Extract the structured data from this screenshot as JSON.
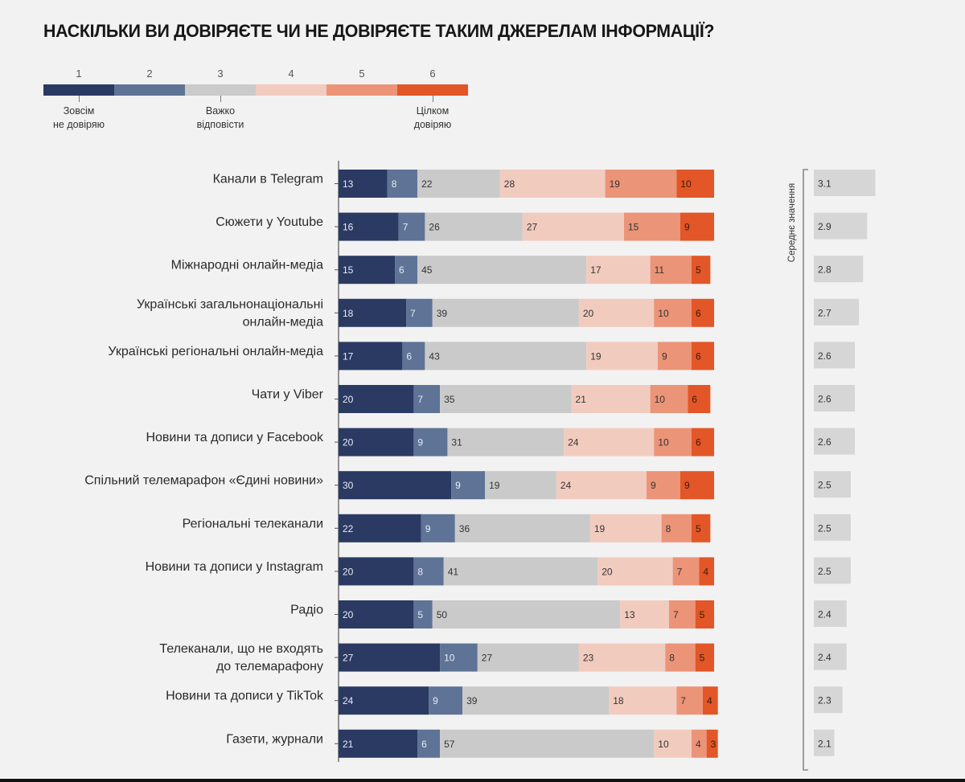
{
  "chart_data": {
    "type": "bar",
    "orientation": "horizontal-stacked-100",
    "title": "НАСКІЛЬКИ ВИ ДОВІРЯЄТЕ ЧИ НЕ ДОВІРЯЄТЕ ТАКИМ ДЖЕРЕЛАМ ІНФОРМАЦІЇ?",
    "scale": {
      "levels": [
        "1",
        "2",
        "3",
        "4",
        "5",
        "6"
      ],
      "colors": [
        "#2a3a63",
        "#5e7395",
        "#cacaca",
        "#f2cbbf",
        "#eb9478",
        "#e25627"
      ],
      "anchors": [
        {
          "level": 1,
          "label_lines": [
            "Зовсім",
            "не довіряю"
          ]
        },
        {
          "level": 3,
          "label_lines": [
            "Важко",
            "відповісти"
          ]
        },
        {
          "level": 6,
          "label_lines": [
            "Цілком",
            "довіряю"
          ]
        }
      ]
    },
    "categories": [
      [
        "Канали в Telegram"
      ],
      [
        "Сюжети у Youtube"
      ],
      [
        "Міжнародні онлайн-медіа"
      ],
      [
        "Українські загальнонаціональні",
        "онлайн-медіа"
      ],
      [
        "Українські регіональні онлайн-медіа"
      ],
      [
        "Чати у Viber"
      ],
      [
        "Новини та дописи у Facebook"
      ],
      [
        "Спільний телемарафон «Єдині новини»"
      ],
      [
        "Регіональні телеканали"
      ],
      [
        "Новини та дописи у Instagram"
      ],
      [
        "Радіо"
      ],
      [
        "Телеканали, що не входять",
        "до телемарафону"
      ],
      [
        "Новини та дописи у TikTok"
      ],
      [
        "Газети, журнали"
      ]
    ],
    "series": [
      {
        "name": "1",
        "values": [
          13,
          16,
          15,
          18,
          17,
          20,
          20,
          30,
          22,
          20,
          20,
          27,
          24,
          21
        ]
      },
      {
        "name": "2",
        "values": [
          8,
          7,
          6,
          7,
          6,
          7,
          9,
          9,
          9,
          8,
          5,
          10,
          9,
          6
        ]
      },
      {
        "name": "3",
        "values": [
          22,
          26,
          45,
          39,
          43,
          35,
          31,
          19,
          36,
          41,
          50,
          27,
          39,
          57
        ]
      },
      {
        "name": "4",
        "values": [
          28,
          27,
          17,
          20,
          19,
          21,
          24,
          24,
          19,
          20,
          13,
          23,
          18,
          10
        ]
      },
      {
        "name": "5",
        "values": [
          19,
          15,
          11,
          10,
          9,
          10,
          10,
          9,
          8,
          7,
          7,
          8,
          7,
          4
        ]
      },
      {
        "name": "6",
        "values": [
          10,
          9,
          5,
          6,
          6,
          6,
          6,
          9,
          5,
          4,
          5,
          5,
          4,
          3
        ]
      }
    ],
    "mean": {
      "title": "Середнє значення",
      "values": [
        3.1,
        2.9,
        2.8,
        2.7,
        2.6,
        2.6,
        2.6,
        2.5,
        2.5,
        2.5,
        2.4,
        2.4,
        2.3,
        2.1
      ],
      "labels": [
        "3.1",
        "2.9",
        "2.8",
        "2.7",
        "2.6",
        "2.6",
        "2.6",
        "2.5",
        "2.5",
        "2.5",
        "2.4",
        "2.4",
        "2.3",
        "2.1"
      ],
      "color": "#d6d6d6"
    },
    "xlabel": "",
    "ylabel": "",
    "xlim": [
      0,
      100
    ],
    "grid": false,
    "legend": "top-left"
  }
}
